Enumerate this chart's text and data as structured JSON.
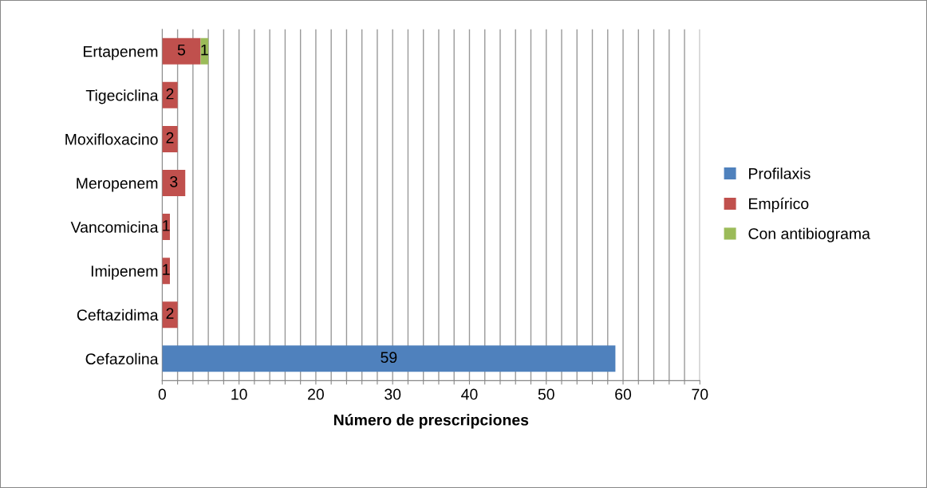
{
  "chart_data": {
    "type": "bar",
    "orientation": "horizontal",
    "stacked": true,
    "xlabel": "Número de prescripciones",
    "categories": [
      "Ertapenem",
      "Tigeciclina",
      "Moxifloxacino",
      "Meropenem",
      "Vancomicina",
      "Imipenem",
      "Ceftazidima",
      "Cefazolina"
    ],
    "series": [
      {
        "name": "Profilaxis",
        "color": "#4f81bd",
        "values": [
          null,
          null,
          null,
          null,
          null,
          null,
          null,
          59
        ]
      },
      {
        "name": "Empírico",
        "color": "#c0504d",
        "values": [
          5,
          2,
          2,
          3,
          1,
          1,
          2,
          null
        ]
      },
      {
        "name": "Con antibiograma",
        "color": "#9bbb59",
        "values": [
          1,
          null,
          null,
          null,
          null,
          null,
          null,
          null
        ]
      }
    ],
    "xlim": [
      0,
      70
    ],
    "xticks": [
      0,
      {
        "value": 2,
        "label": null
      },
      {
        "value": 4,
        "label": null
      },
      {
        "value": 6,
        "label": null
      },
      {
        "value": 8,
        "label": null
      },
      10,
      {
        "value": 12,
        "label": null
      },
      {
        "value": 14,
        "label": null
      },
      {
        "value": 16,
        "label": null
      },
      {
        "value": 18,
        "label": null
      },
      20,
      {
        "value": 22,
        "label": null
      },
      {
        "value": 24,
        "label": null
      },
      {
        "value": 26,
        "label": null
      },
      {
        "value": 28,
        "label": null
      },
      30,
      {
        "value": 32,
        "label": null
      },
      {
        "value": 34,
        "label": null
      },
      {
        "value": 36,
        "label": null
      },
      {
        "value": 38,
        "label": null
      },
      40,
      {
        "value": 42,
        "label": null
      },
      {
        "value": 44,
        "label": null
      },
      {
        "value": 46,
        "label": null
      },
      {
        "value": 48,
        "label": null
      },
      50,
      {
        "value": 52,
        "label": null
      },
      {
        "value": 54,
        "label": null
      },
      {
        "value": 56,
        "label": null
      },
      {
        "value": 58,
        "label": null
      },
      60,
      {
        "value": 62,
        "label": null
      },
      {
        "value": 64,
        "label": null
      },
      {
        "value": 66,
        "label": null
      },
      {
        "value": 68,
        "label": null
      },
      70
    ],
    "grid": "x",
    "legend": "right",
    "data_labels": true
  }
}
